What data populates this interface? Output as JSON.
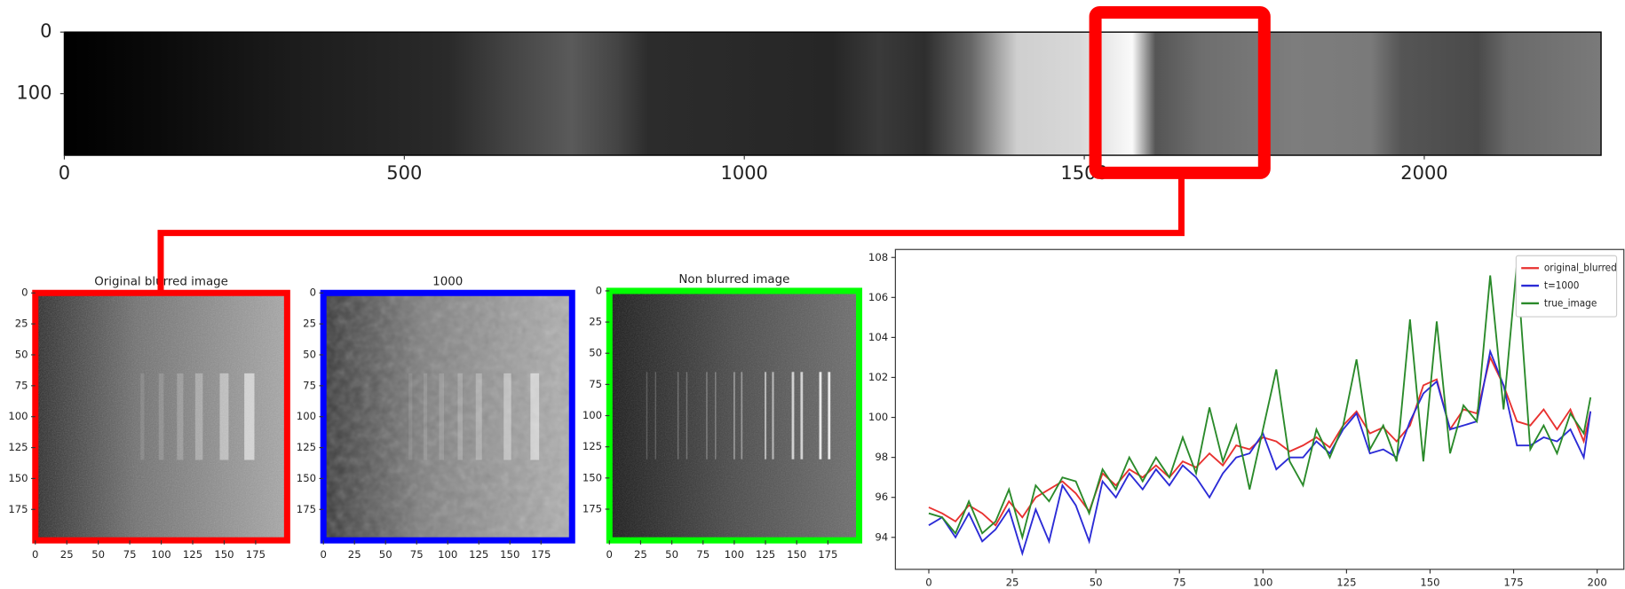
{
  "chart_data": [
    {
      "type": "image",
      "xlim": [
        0,
        2260
      ],
      "ylim": [
        200,
        0
      ],
      "xticks": [
        0,
        500,
        1000,
        1500,
        2000
      ],
      "yticks": [
        0,
        100
      ]
    },
    {
      "type": "image",
      "title": "Original blurred image",
      "color": "#ff0000",
      "xlim": [
        0,
        200
      ],
      "ylim": [
        200,
        0
      ],
      "xticks": [
        0,
        25,
        50,
        75,
        100,
        125,
        150,
        175
      ],
      "yticks": [
        0,
        25,
        50,
        75,
        100,
        125,
        150,
        175
      ]
    },
    {
      "type": "image",
      "title": "1000",
      "color": "#0000ff",
      "xlim": [
        0,
        200
      ],
      "ylim": [
        200,
        0
      ],
      "xticks": [
        0,
        25,
        50,
        75,
        100,
        125,
        150,
        175
      ],
      "yticks": [
        0,
        25,
        50,
        75,
        100,
        125,
        150,
        175
      ]
    },
    {
      "type": "image",
      "title": "Non blurred image",
      "color": "#00ff00",
      "xlim": [
        0,
        200
      ],
      "ylim": [
        200,
        0
      ],
      "xticks": [
        0,
        25,
        50,
        75,
        100,
        125,
        150,
        175
      ],
      "yticks": [
        0,
        25,
        50,
        75,
        100,
        125,
        150,
        175
      ]
    },
    {
      "type": "line",
      "legend": "upper right",
      "xlim": [
        -10,
        208
      ],
      "ylim": [
        92.4,
        108.4
      ],
      "xticks": [
        0,
        25,
        50,
        75,
        100,
        125,
        150,
        175,
        200
      ],
      "yticks": [
        94,
        96,
        98,
        100,
        102,
        104,
        106,
        108
      ],
      "x": [
        0,
        4,
        8,
        12,
        16,
        20,
        24,
        28,
        32,
        36,
        40,
        44,
        48,
        52,
        56,
        60,
        64,
        68,
        72,
        76,
        80,
        84,
        88,
        92,
        96,
        100,
        104,
        108,
        112,
        116,
        120,
        124,
        128,
        132,
        136,
        140,
        144,
        148,
        152,
        156,
        160,
        164,
        168,
        172,
        176,
        180,
        184,
        188,
        192,
        196,
        198
      ],
      "series": [
        {
          "name": "original_blurred",
          "color": "#e8312f",
          "values": [
            95.5,
            95.2,
            94.8,
            95.6,
            95.2,
            94.6,
            95.8,
            95.0,
            96.0,
            96.4,
            96.8,
            96.2,
            95.3,
            97.2,
            96.6,
            97.4,
            97.0,
            97.6,
            97.0,
            97.8,
            97.5,
            98.2,
            97.6,
            98.6,
            98.4,
            99.0,
            98.8,
            98.3,
            98.6,
            99.0,
            98.5,
            99.6,
            100.3,
            99.2,
            99.5,
            98.8,
            99.6,
            101.6,
            101.9,
            99.4,
            100.4,
            100.2,
            103.0,
            101.6,
            99.8,
            99.6,
            100.4,
            99.4,
            100.4,
            98.8,
            100.3
          ]
        },
        {
          "name": "t=1000",
          "color": "#2b2bd6",
          "values": [
            94.6,
            95.0,
            94.0,
            95.2,
            93.8,
            94.4,
            95.4,
            93.2,
            95.4,
            93.8,
            96.6,
            95.6,
            93.8,
            96.8,
            96.0,
            97.2,
            96.4,
            97.4,
            96.6,
            97.6,
            97.0,
            96.0,
            97.2,
            98.0,
            98.2,
            99.2,
            97.4,
            98.0,
            98.0,
            98.8,
            98.2,
            99.4,
            100.2,
            98.2,
            98.4,
            98.0,
            99.8,
            101.2,
            101.8,
            99.4,
            99.6,
            99.8,
            103.3,
            101.6,
            98.6,
            98.6,
            99.0,
            98.8,
            99.4,
            98.0,
            100.3
          ]
        },
        {
          "name": "true_image",
          "color": "#2a8a2a",
          "values": [
            95.2,
            95.0,
            94.2,
            95.8,
            94.2,
            94.8,
            96.4,
            94.0,
            96.6,
            95.8,
            97.0,
            96.8,
            95.2,
            97.4,
            96.4,
            98.0,
            96.8,
            98.0,
            97.0,
            99.0,
            97.2,
            100.5,
            97.8,
            99.6,
            96.4,
            99.4,
            102.4,
            97.8,
            96.6,
            99.4,
            98.0,
            99.6,
            102.9,
            98.4,
            99.6,
            97.8,
            104.9,
            97.8,
            104.8,
            98.2,
            100.6,
            99.8,
            107.1,
            100.4,
            107.7,
            98.4,
            99.6,
            98.2,
            100.2,
            99.2,
            101.0
          ]
        }
      ]
    }
  ]
}
